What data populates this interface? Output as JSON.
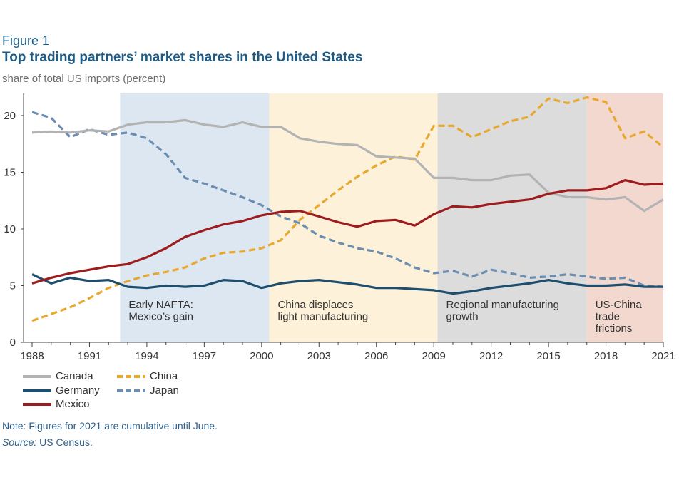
{
  "figure_label": "Figure 1",
  "title": "Top trading partners’ market shares in the United States",
  "subtitle": "share of total US imports (percent)",
  "note": "Note: Figures for 2021 are cumulative until June.",
  "source_label": "Source:",
  "source_text": " US Census.",
  "colors": {
    "canada": "#b3b3b3",
    "china": "#e8a830",
    "germany": "#1d4e6e",
    "japan": "#6b8db0",
    "mexico": "#9e1b1e",
    "period1": "#dde7f2",
    "period2": "#fdf1da",
    "period3": "#dcdcdc",
    "period4": "#f2d8cf"
  },
  "chart_data": {
    "type": "line",
    "title": "Top trading partners’ market shares in the United States",
    "ylabel": "share of total US imports (percent)",
    "xlabel": "",
    "ylim": [
      0,
      22
    ],
    "xlim": [
      1988,
      2021
    ],
    "x_ticks": [
      1988,
      1991,
      1994,
      1997,
      2000,
      2003,
      2006,
      2009,
      2012,
      2015,
      2018,
      2021
    ],
    "y_ticks": [
      0,
      5,
      10,
      15,
      20
    ],
    "x": [
      1988,
      1989,
      1990,
      1991,
      1992,
      1993,
      1994,
      1995,
      1996,
      1997,
      1998,
      1999,
      2000,
      2001,
      2002,
      2003,
      2004,
      2005,
      2006,
      2007,
      2008,
      2009,
      2010,
      2011,
      2012,
      2013,
      2014,
      2015,
      2016,
      2017,
      2018,
      2019,
      2020,
      2021
    ],
    "series": [
      {
        "name": "Canada",
        "key": "canada",
        "dashed": false,
        "values": [
          18.5,
          18.6,
          18.5,
          18.7,
          18.6,
          19.2,
          19.4,
          19.4,
          19.6,
          19.2,
          19.0,
          19.4,
          19.0,
          19.0,
          18.0,
          17.7,
          17.5,
          17.4,
          16.4,
          16.3,
          16.2,
          14.5,
          14.5,
          14.3,
          14.3,
          14.7,
          14.8,
          13.2,
          12.8,
          12.8,
          12.6,
          12.8,
          11.6,
          12.6
        ]
      },
      {
        "name": "China",
        "key": "china",
        "dashed": true,
        "values": [
          1.9,
          2.5,
          3.1,
          3.9,
          4.8,
          5.4,
          5.9,
          6.2,
          6.6,
          7.4,
          7.9,
          8.0,
          8.3,
          9.0,
          10.8,
          12.1,
          13.4,
          14.6,
          15.6,
          16.4,
          16.1,
          19.1,
          19.1,
          18.1,
          18.8,
          19.5,
          19.9,
          21.5,
          21.1,
          21.6,
          21.2,
          18.0,
          18.6,
          17.2
        ]
      },
      {
        "name": "Germany",
        "key": "germany",
        "dashed": false,
        "values": [
          6.0,
          5.2,
          5.7,
          5.4,
          5.5,
          4.9,
          4.8,
          5.0,
          4.9,
          5.0,
          5.5,
          5.4,
          4.8,
          5.2,
          5.4,
          5.5,
          5.3,
          5.1,
          4.8,
          4.8,
          4.7,
          4.6,
          4.3,
          4.5,
          4.8,
          5.0,
          5.2,
          5.5,
          5.2,
          5.0,
          5.0,
          5.1,
          4.9,
          4.9
        ]
      },
      {
        "name": "Japan",
        "key": "japan",
        "dashed": true,
        "values": [
          20.3,
          19.8,
          18.1,
          18.8,
          18.3,
          18.5,
          18.0,
          16.6,
          14.5,
          14.0,
          13.4,
          12.8,
          12.1,
          11.1,
          10.5,
          9.4,
          8.8,
          8.3,
          8.0,
          7.4,
          6.6,
          6.1,
          6.3,
          5.8,
          6.4,
          6.1,
          5.7,
          5.8,
          6.0,
          5.8,
          5.6,
          5.7,
          5.0,
          4.9
        ]
      },
      {
        "name": "Mexico",
        "key": "mexico",
        "dashed": false,
        "values": [
          5.2,
          5.7,
          6.1,
          6.4,
          6.7,
          6.9,
          7.5,
          8.3,
          9.3,
          9.9,
          10.4,
          10.7,
          11.2,
          11.5,
          11.6,
          11.1,
          10.6,
          10.2,
          10.7,
          10.8,
          10.3,
          11.3,
          12.0,
          11.9,
          12.2,
          12.4,
          12.6,
          13.1,
          13.4,
          13.4,
          13.6,
          14.3,
          13.9,
          14.0
        ]
      }
    ],
    "periods": [
      {
        "label_lines": [
          "Early NAFTA:",
          "Mexico’s gain"
        ],
        "start": 1992.6,
        "end": 2000.4,
        "key": "period1"
      },
      {
        "label_lines": [
          "China displaces",
          "light manufacturing"
        ],
        "start": 2000.4,
        "end": 2009.2,
        "key": "period2"
      },
      {
        "label_lines": [
          "Regional manufacturing",
          "growth"
        ],
        "start": 2009.2,
        "end": 2017.0,
        "key": "period3"
      },
      {
        "label_lines": [
          "US-China",
          "trade",
          "frictions"
        ],
        "start": 2017.0,
        "end": 2021.0,
        "key": "period4"
      }
    ],
    "legend": [
      "Canada",
      "China",
      "Germany",
      "Japan",
      "Mexico"
    ],
    "legend_position": "bottom-left",
    "grid": false
  }
}
